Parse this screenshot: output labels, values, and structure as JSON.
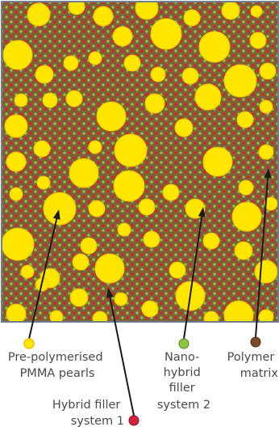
{
  "colors": {
    "matrix": "#7d6136",
    "matrix_border": "#6e7f8c",
    "pearl_fill": "#ffe600",
    "pearl_stroke": "#f2c200",
    "nano_dot": "#8bc43f",
    "hybrid_dot": "#d5223b",
    "matrix_marker": "#7a4a26",
    "arrow": "#1a1a1a"
  },
  "labels": {
    "pmma": [
      "Pre-polymerised",
      "PMMA pearls"
    ],
    "nano": [
      "Nano-",
      "hybrid",
      "filler",
      "system 2"
    ],
    "matrix": [
      "Polymer",
      "matrix"
    ],
    "hybrid": [
      "Hybrid filler",
      "system 1"
    ]
  }
}
